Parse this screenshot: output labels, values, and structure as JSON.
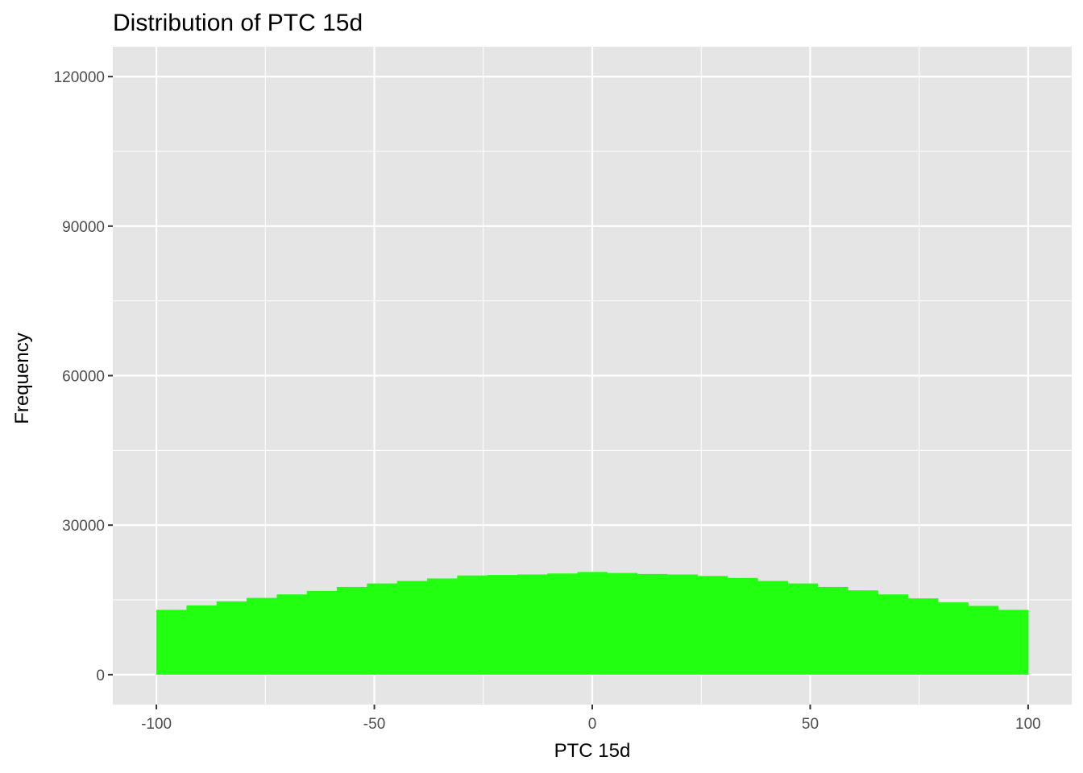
{
  "chart_data": {
    "type": "bar",
    "title": "Distribution of PTC 15d",
    "xlabel": "PTC 15d",
    "ylabel": "Frequency",
    "xlim": [
      -110,
      110
    ],
    "ylim": [
      -6000,
      126000
    ],
    "x_ticks": [
      -100,
      -50,
      0,
      50,
      100
    ],
    "x_tick_labels": [
      "-100",
      "-50",
      "0",
      "50",
      "100"
    ],
    "y_ticks": [
      0,
      30000,
      60000,
      90000,
      120000
    ],
    "y_tick_labels": [
      "0",
      "30000",
      "60000",
      "90000",
      "120000"
    ],
    "grid": true,
    "bin_width": 6.9,
    "bin_left_edges": [
      -100,
      -93.1,
      -86.2,
      -79.3,
      -72.4,
      -65.5,
      -58.6,
      -51.7,
      -44.8,
      -37.9,
      -31.0,
      -24.1,
      -17.2,
      -10.3,
      -3.4,
      3.4,
      10.3,
      17.2,
      24.1,
      31.0,
      37.9,
      44.8,
      51.7,
      58.6,
      65.5,
      72.4,
      79.3,
      86.2,
      93.1
    ],
    "values": [
      13000,
      13900,
      14700,
      15400,
      16100,
      16800,
      17600,
      18300,
      18800,
      19300,
      19900,
      20000,
      20100,
      20300,
      20600,
      20400,
      20200,
      20100,
      19800,
      19400,
      18800,
      18300,
      17600,
      16900,
      16100,
      15300,
      14500,
      13800,
      13000
    ],
    "bar_color": "#22ff11",
    "panel_color": "#e5e5e5",
    "grid_color": "#ffffff"
  }
}
